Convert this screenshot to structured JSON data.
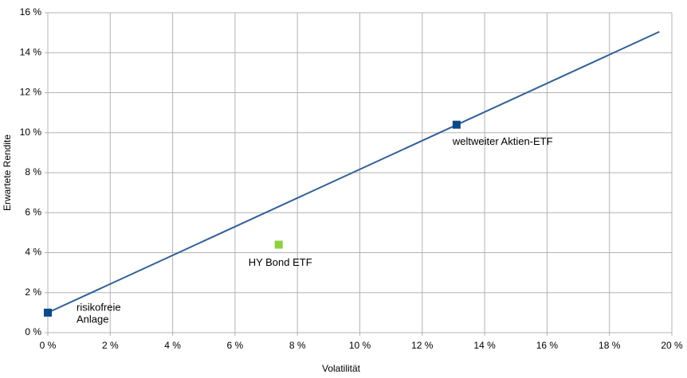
{
  "chart_data": {
    "type": "scatter",
    "x_label": "Volatilität",
    "y_label": "Erwartete Rendite",
    "xlim": [
      0,
      20
    ],
    "ylim": [
      0,
      16
    ],
    "xticks": [
      {
        "value": 0,
        "label": "0 %"
      },
      {
        "value": 2,
        "label": "2 %"
      },
      {
        "value": 4,
        "label": "4 %"
      },
      {
        "value": 6,
        "label": "6 %"
      },
      {
        "value": 8,
        "label": "8 %"
      },
      {
        "value": 10,
        "label": "10 %"
      },
      {
        "value": 12,
        "label": "12 %"
      },
      {
        "value": 14,
        "label": "14 %"
      },
      {
        "value": 16,
        "label": "16 %"
      },
      {
        "value": 18,
        "label": "18 %"
      },
      {
        "value": 20,
        "label": "20 %"
      }
    ],
    "yticks": [
      {
        "value": 0,
        "label": "0 %"
      },
      {
        "value": 2,
        "label": "2 %"
      },
      {
        "value": 4,
        "label": "4 %"
      },
      {
        "value": 6,
        "label": "6 %"
      },
      {
        "value": 8,
        "label": "8 %"
      },
      {
        "value": 10,
        "label": "10 %"
      },
      {
        "value": 12,
        "label": "12 %"
      },
      {
        "value": 14,
        "label": "14 %"
      },
      {
        "value": 16,
        "label": "16 %"
      }
    ],
    "grid": true,
    "lines": [
      {
        "color": "#2e5f99",
        "x": [
          0,
          19.6
        ],
        "y": [
          1,
          15.05
        ]
      }
    ],
    "points": [
      {
        "x": 0,
        "y": 1,
        "color": "#0b4a8a",
        "label": [
          "risikofreie",
          "Anlage"
        ]
      },
      {
        "x": 13.1,
        "y": 10.4,
        "color": "#0b4a8a",
        "label": [
          "weltweiter Aktien-ETF"
        ]
      },
      {
        "x": 7.4,
        "y": 4.4,
        "color": "#8ed03c",
        "label": [
          "HY Bond ETF"
        ]
      }
    ]
  }
}
